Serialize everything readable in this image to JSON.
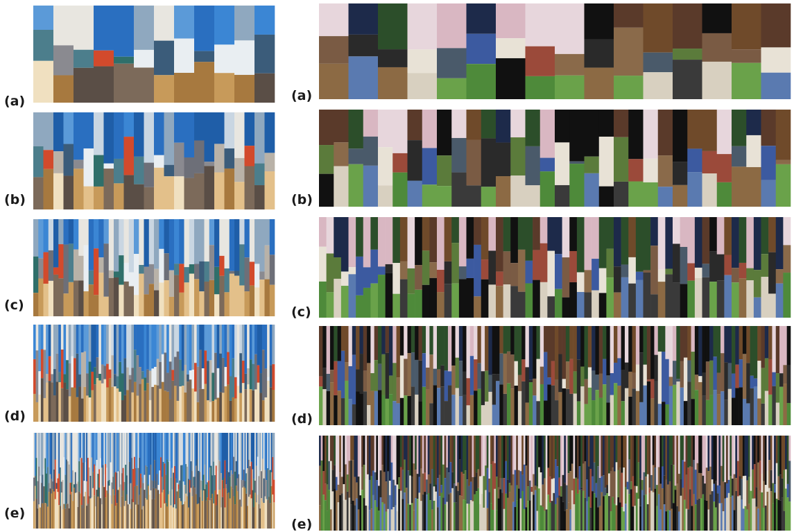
{
  "left": {
    "labels": [
      "(a)",
      "(b)",
      "(c)",
      "(d)",
      "(e)"
    ]
  },
  "right": {
    "labels": [
      "(a)",
      "(b)",
      "(c)",
      "(d)",
      "(e)"
    ]
  }
}
